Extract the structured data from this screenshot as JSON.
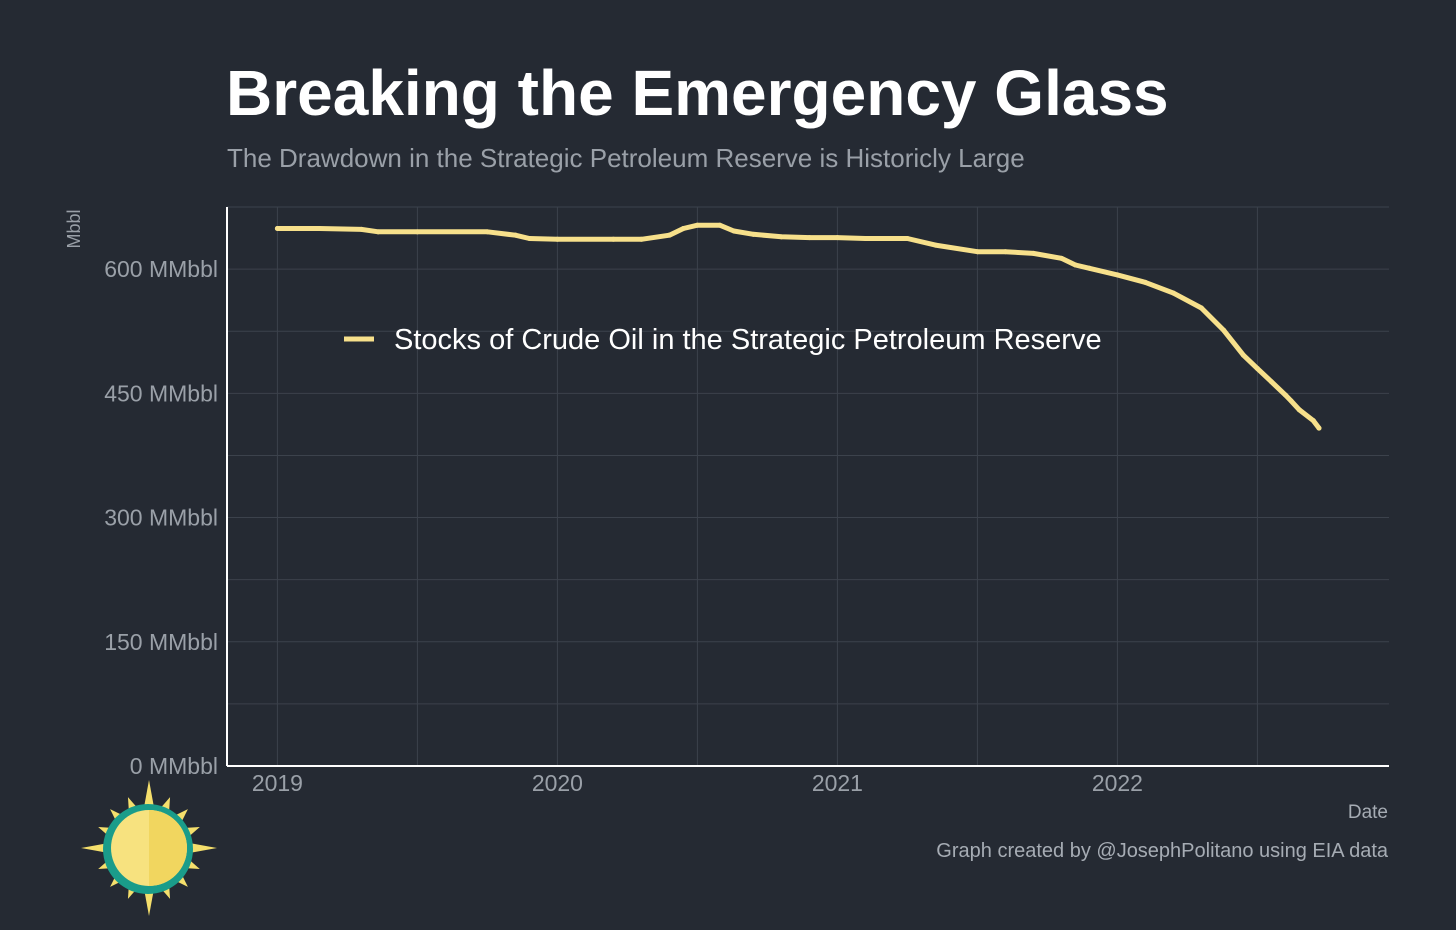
{
  "title": "Breaking the Emergency Glass",
  "subtitle": "The Drawdown in the Strategic Petroleum Reserve is Historicly Large",
  "caption": "Graph created by @JosephPolitano using EIA data",
  "logo": {
    "icon": "sun-icon"
  },
  "colors": {
    "background": "#252a33",
    "line": "#f7e08b",
    "grid": "#3c424c",
    "axis": "#ffffff",
    "tick_text": "#9aa0a8"
  },
  "chart_data": {
    "type": "line",
    "title": "Breaking the Emergency Glass",
    "subtitle": "The Drawdown in the Strategic Petroleum Reserve is Historicly Large",
    "xlabel": "Date",
    "ylabel": "Mbbl",
    "xlim": [
      2018.82,
      2022.97
    ],
    "ylim": [
      0,
      675
    ],
    "grid": true,
    "legend_position": "inside-top-left",
    "x_ticks": [
      2019,
      2020,
      2021,
      2022
    ],
    "x_tick_labels": [
      "2019",
      "2020",
      "2021",
      "2022"
    ],
    "y_ticks": [
      0,
      150,
      300,
      450,
      600
    ],
    "y_tick_labels": [
      "0 MMbbl",
      "150 MMbbl",
      "300 MMbbl",
      "450 MMbbl",
      "600 MMbbl"
    ],
    "series": [
      {
        "name": "Stocks of Crude Oil in the Strategic Petroleum Reserve",
        "color": "#f7e08b",
        "x": [
          2019.0,
          2019.15,
          2019.3,
          2019.36,
          2019.5,
          2019.75,
          2019.85,
          2019.9,
          2020.0,
          2020.2,
          2020.3,
          2020.4,
          2020.45,
          2020.5,
          2020.58,
          2020.63,
          2020.7,
          2020.8,
          2020.9,
          2021.0,
          2021.1,
          2021.25,
          2021.35,
          2021.5,
          2021.6,
          2021.7,
          2021.8,
          2021.85,
          2021.9,
          2022.0,
          2022.1,
          2022.2,
          2022.3,
          2022.38,
          2022.45,
          2022.5,
          2022.55,
          2022.6,
          2022.62,
          2022.65,
          2022.7,
          2022.72
        ],
        "values": [
          649,
          649,
          648,
          645,
          645,
          645,
          641,
          637,
          636,
          636,
          636,
          641,
          649,
          653,
          653,
          646,
          642,
          639,
          638,
          638,
          637,
          637,
          629,
          621,
          621,
          619,
          613,
          605,
          601,
          593,
          584,
          571,
          553,
          526,
          496,
          480,
          464,
          448,
          441,
          430,
          417,
          408
        ]
      }
    ]
  }
}
